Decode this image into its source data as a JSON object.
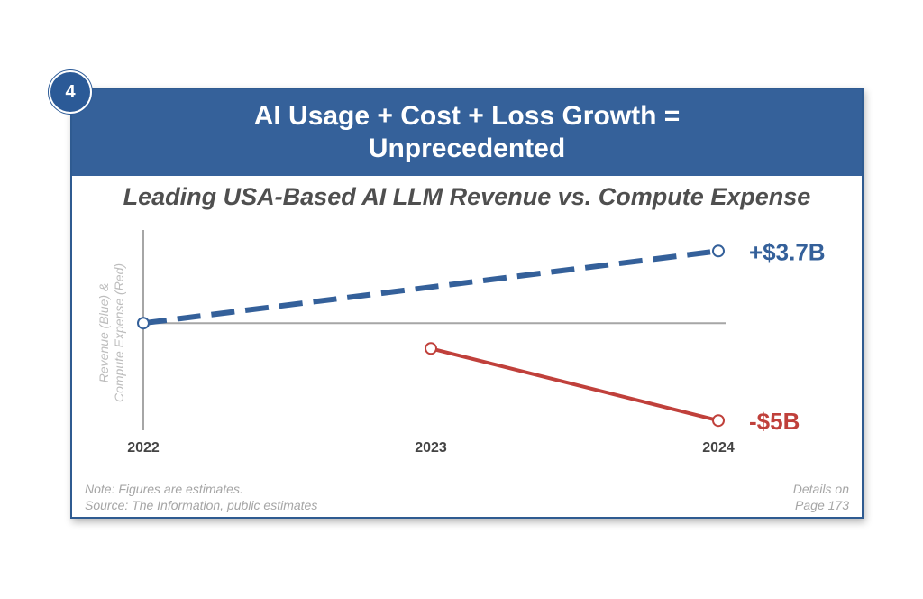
{
  "badge": "4",
  "header": {
    "line1": "AI Usage + Cost + Loss Growth =",
    "line2": "Unprecedented"
  },
  "subtitle": "Leading USA-Based AI LLM Revenue vs. Compute Expense",
  "note": {
    "line1": "Note: Figures are estimates.",
    "line2": "Source: The Information, public estimates"
  },
  "details": {
    "line1": "Details on",
    "line2": "Page 173"
  },
  "colors": {
    "brand": "#35619a",
    "revenue": "#34609a",
    "expense": "#c0403b",
    "axis": "#a6a6a6"
  },
  "chart_data": {
    "type": "line",
    "categories": [
      "2022",
      "2023",
      "2024"
    ],
    "ylabel_line1": "Revenue (Blue) &",
    "ylabel_line2": "Compute Expense (Red)",
    "ylim": [
      -5.5,
      4.5
    ],
    "grid": false,
    "series": [
      {
        "color": "#34609a",
        "style": "dashed",
        "points": [
          {
            "x": "2022",
            "y": 0
          },
          {
            "x": "2024",
            "y": 3.7
          }
        ],
        "end_label": "+$3.7B"
      },
      {
        "color": "#c0403b",
        "style": "solid",
        "points": [
          {
            "x": "2023",
            "y": -1.3
          },
          {
            "x": "2024",
            "y": -5
          }
        ],
        "end_label": "-$5B"
      }
    ]
  }
}
